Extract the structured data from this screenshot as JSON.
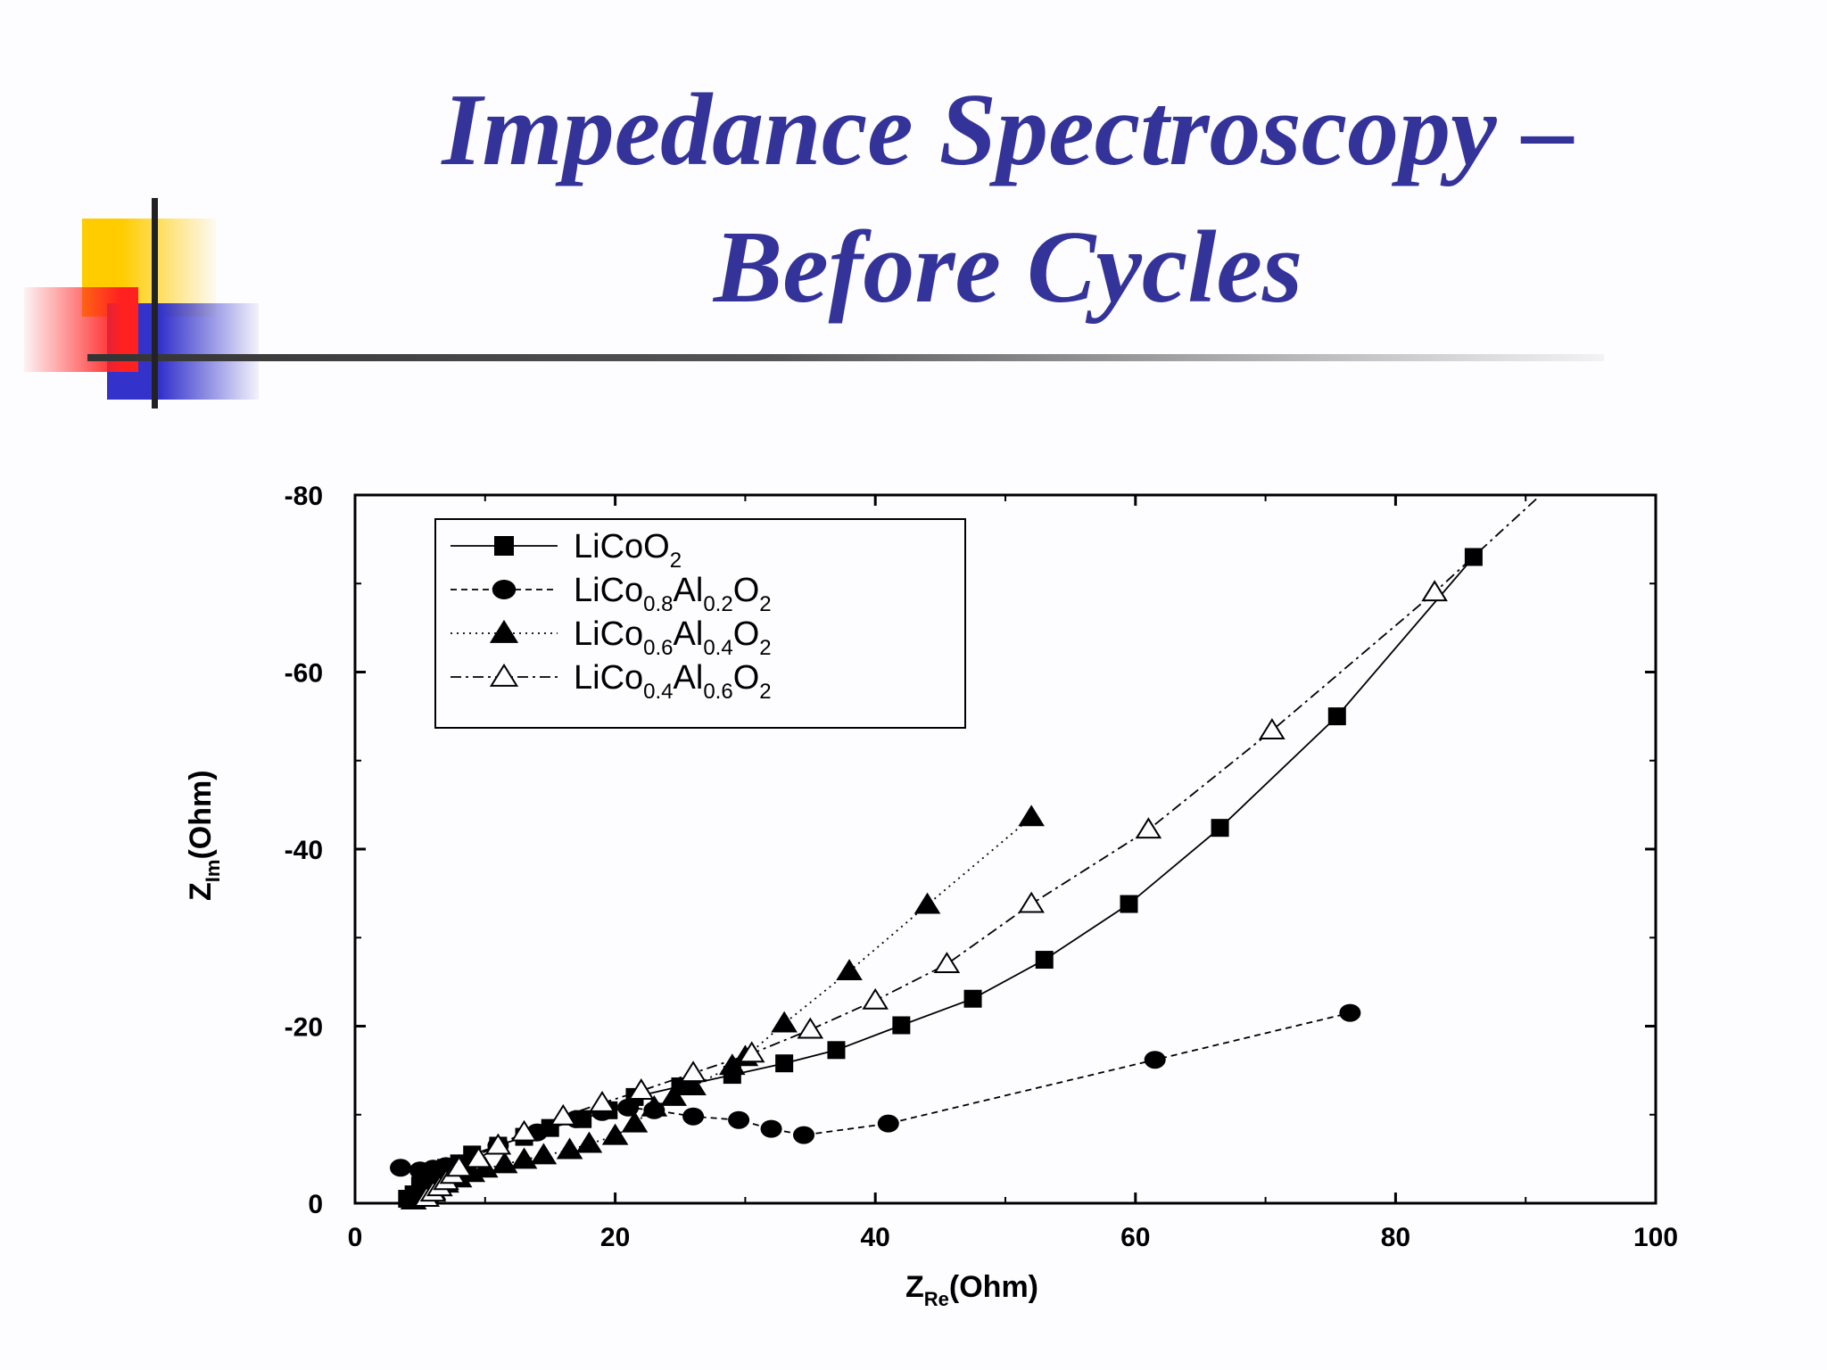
{
  "slide": {
    "title_line1": "Impedance Spectroscopy –",
    "title_line2": "Before Cycles",
    "colors": {
      "title": "#333399",
      "deco_yellow": "#FFCC00",
      "deco_red": "#FF3333",
      "deco_blue": "#3333CC",
      "deco_line": "#333333"
    }
  },
  "chart_data": {
    "type": "scatter",
    "xlabel_main": "Z",
    "xlabel_sub": "Re",
    "xlabel_unit": "(Ohm)",
    "ylabel_main": "Z",
    "ylabel_sub": "Im",
    "ylabel_unit": "(Ohm)",
    "xlim": [
      0,
      100
    ],
    "ylim": [
      0,
      -80
    ],
    "xticks": [
      "0",
      "20",
      "40",
      "60",
      "80",
      "100"
    ],
    "yticks": [
      "0",
      "-20",
      "-40",
      "-60",
      "-80"
    ],
    "grid": false,
    "legend_position": "top-left",
    "series": [
      {
        "name": "LiCoO2",
        "legend_parts": [
          [
            "LiCoO",
            ""
          ],
          [
            "2",
            "sub"
          ]
        ],
        "marker": "square-filled",
        "line": "solid",
        "x": [
          4.0,
          4.5,
          5.0,
          5.5,
          6.0,
          6.5,
          7.0,
          8.0,
          9.0,
          11.0,
          13.0,
          15.0,
          17.5,
          19.5,
          21.5,
          25.0,
          29.0,
          33.0,
          37.0,
          42.0,
          47.5,
          53.0,
          59.5,
          66.5,
          75.5,
          86.0
        ],
        "y": [
          -0.5,
          -1.0,
          -2.0,
          -2.5,
          -3.0,
          -3.5,
          -4.0,
          -4.5,
          -5.5,
          -6.5,
          -7.5,
          -8.5,
          -9.5,
          -10.5,
          -12.0,
          -13.2,
          -14.5,
          -15.8,
          -17.3,
          -20.1,
          -23.1,
          -27.5,
          -33.8,
          -42.4,
          -55.0,
          -73.0
        ]
      },
      {
        "name": "LiCo0.8Al0.2O2",
        "legend_parts": [
          [
            "LiCo",
            ""
          ],
          [
            "0.8",
            "sub"
          ],
          [
            "Al",
            ""
          ],
          [
            "0.2",
            "sub"
          ],
          [
            "O",
            ""
          ],
          [
            "2",
            "sub"
          ]
        ],
        "marker": "circle-filled",
        "line": "dashed",
        "x": [
          3.5,
          5.0,
          6.0,
          7.0,
          8.0,
          11.0,
          14.0,
          17.0,
          19.0,
          21.0,
          23.0,
          26.0,
          29.5,
          32.0,
          34.5,
          41.0,
          61.5,
          76.5
        ],
        "y": [
          -4.0,
          -3.7,
          -3.9,
          -4.2,
          -4.5,
          -6.5,
          -8.0,
          -9.5,
          -10.3,
          -10.8,
          -10.5,
          -9.8,
          -9.4,
          -8.4,
          -7.7,
          -9.0,
          -16.2,
          -21.5
        ],
        "extend_x": [],
        "extend_y": []
      },
      {
        "name": "LiCo0.6Al0.4O2",
        "legend_parts": [
          [
            "LiCo",
            ""
          ],
          [
            "0.6",
            "sub"
          ],
          [
            "Al",
            ""
          ],
          [
            "0.4",
            "sub"
          ],
          [
            "O",
            ""
          ],
          [
            "2",
            "sub"
          ]
        ],
        "marker": "triangle-filled",
        "line": "dotted",
        "x": [
          4.5,
          5.0,
          5.5,
          6.0,
          6.5,
          7.0,
          8.0,
          9.0,
          10.0,
          11.5,
          13.0,
          14.5,
          16.5,
          18.0,
          20.0,
          21.5,
          23.0,
          24.5,
          26.0,
          29.0,
          30.0,
          33.0,
          38.0,
          44.0,
          52.0
        ],
        "y": [
          -0.3,
          -0.6,
          -1.0,
          -1.4,
          -1.8,
          -2.2,
          -2.8,
          -3.4,
          -3.9,
          -4.4,
          -4.9,
          -5.4,
          -6.0,
          -6.7,
          -7.6,
          -9.0,
          -10.8,
          -12.0,
          -13.2,
          -15.5,
          -16.5,
          -20.3,
          -26.2,
          -33.7,
          -43.6
        ]
      },
      {
        "name": "LiCo0.4Al0.6O2",
        "legend_parts": [
          [
            "LiCo",
            ""
          ],
          [
            "0.4",
            "sub"
          ],
          [
            "Al",
            ""
          ],
          [
            "0.6",
            "sub"
          ],
          [
            "O",
            ""
          ],
          [
            "2",
            "sub"
          ]
        ],
        "marker": "triangle-open",
        "line": "dashdot",
        "x": [
          5.5,
          6.0,
          6.5,
          7.0,
          7.5,
          8.0,
          9.5,
          11.0,
          13.0,
          16.0,
          19.0,
          22.0,
          26.0,
          30.5,
          35.0,
          40.0,
          45.5,
          52.0,
          61.0,
          70.5,
          83.0
        ],
        "y": [
          -0.6,
          -1.2,
          -1.8,
          -2.5,
          -3.2,
          -4.0,
          -5.0,
          -6.5,
          -8.0,
          -9.8,
          -11.3,
          -12.7,
          -14.7,
          -16.9,
          -19.6,
          -22.9,
          -27.0,
          -33.8,
          -42.2,
          -53.4,
          -69.0
        ],
        "extend_x": [
          91.0
        ],
        "extend_y": [
          -79.8
        ]
      }
    ]
  }
}
